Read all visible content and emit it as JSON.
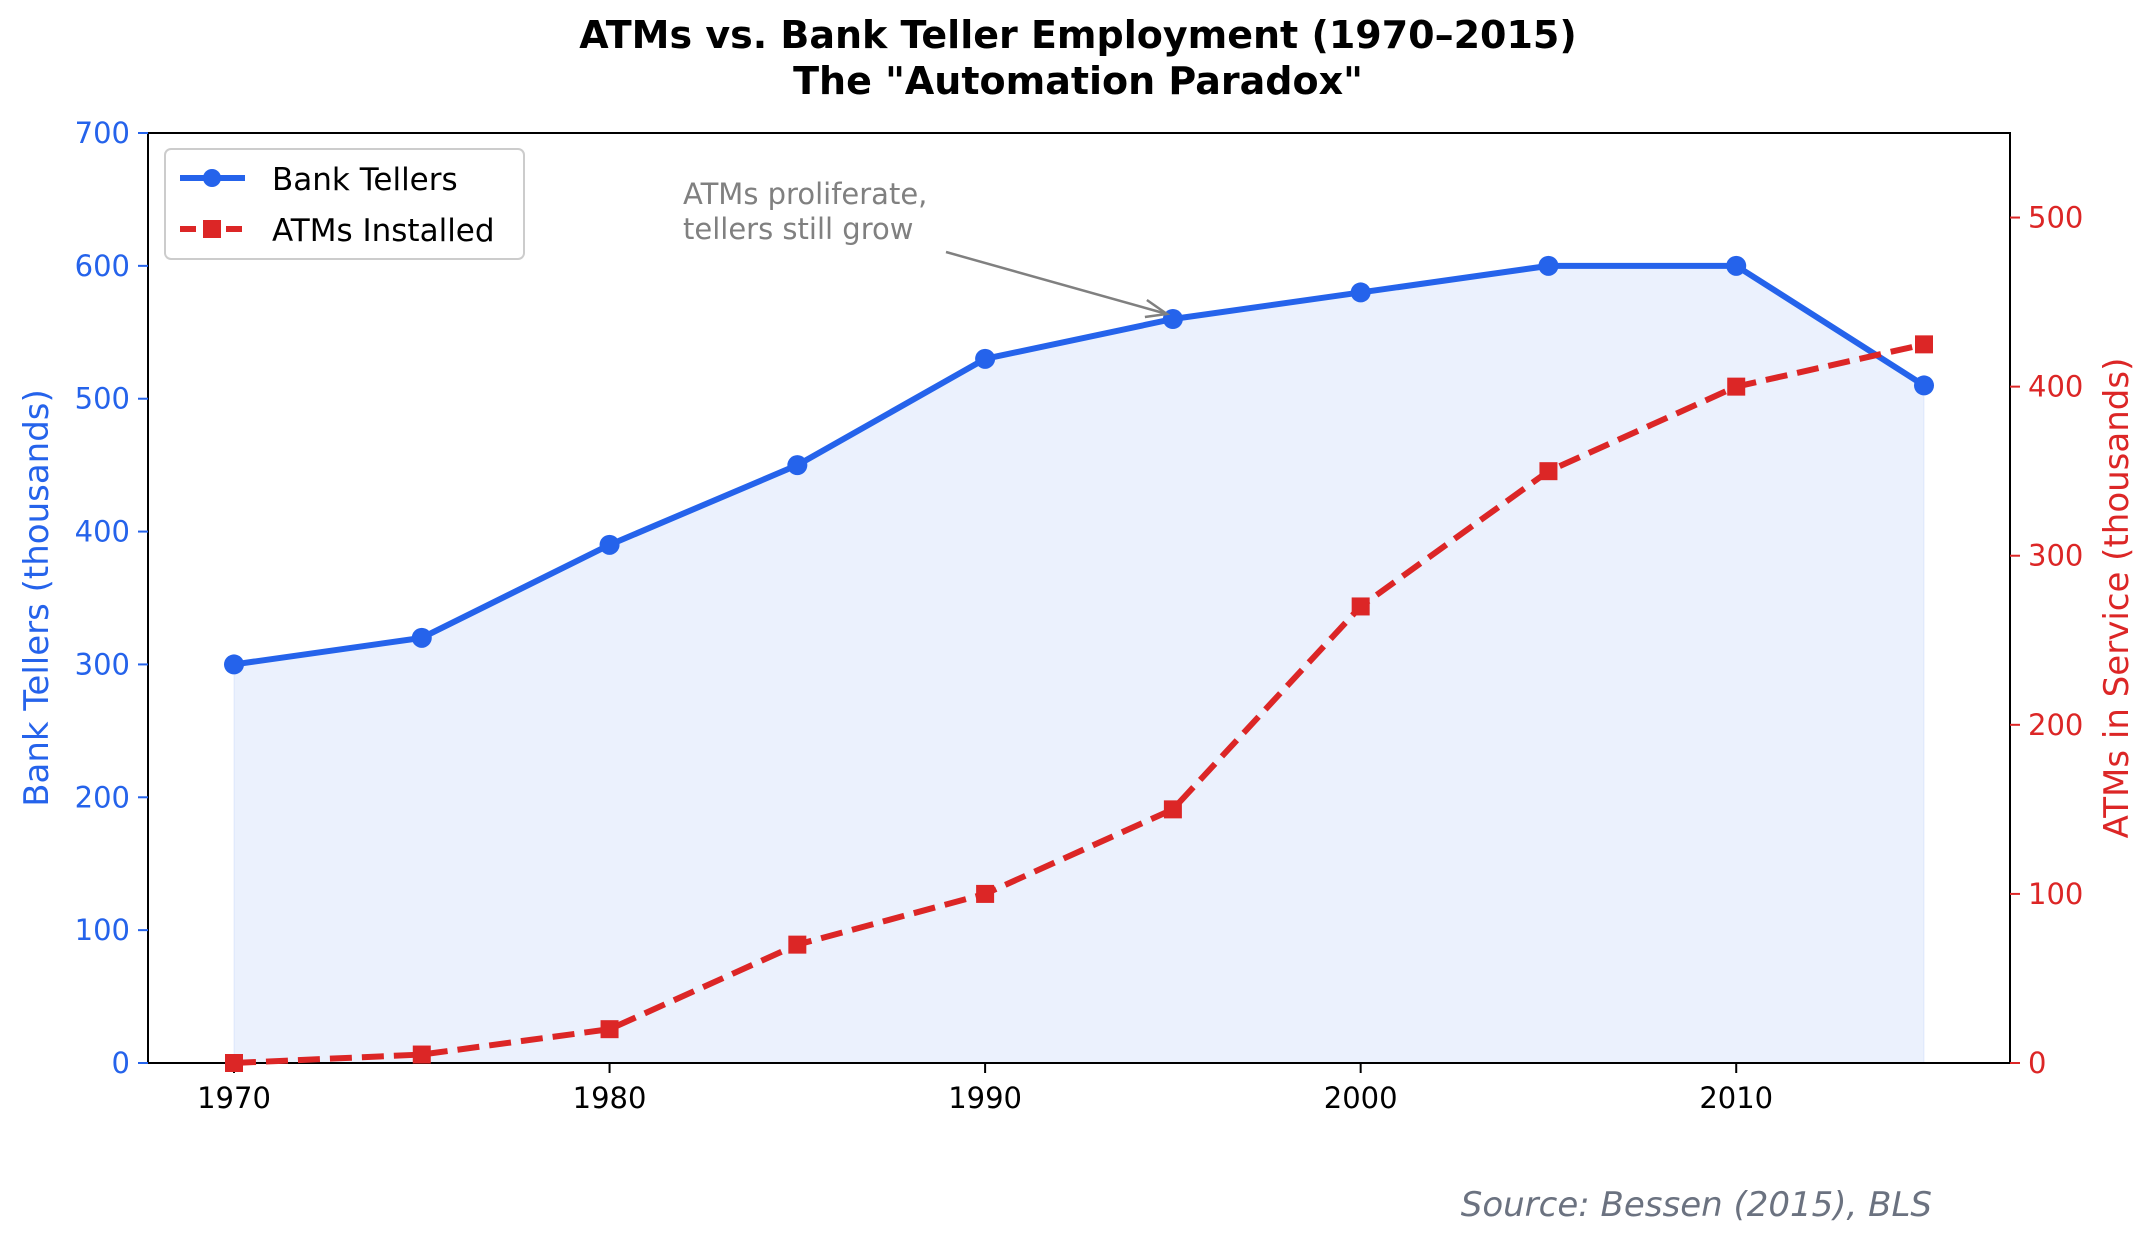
{
  "chart_data": {
    "type": "line",
    "title": "ATMs vs. Bank Teller Employment (1970–2015)",
    "subtitle": "The \"Automation Paradox\"",
    "x": [
      1970,
      1975,
      1980,
      1985,
      1990,
      1995,
      2000,
      2005,
      2010,
      2015
    ],
    "xlim": [
      1967.5,
      2017.3
    ],
    "xticks": [
      1970,
      1980,
      1990,
      2000,
      2010
    ],
    "ylabel_left": "Bank Tellers (thousands)",
    "ylabel_right": "ATMs in Service (thousands)",
    "ylim_left": [
      0,
      700
    ],
    "yticks_left": [
      0,
      100,
      200,
      300,
      400,
      500,
      600,
      700
    ],
    "ylim_right": [
      0,
      550
    ],
    "yticks_right": [
      0,
      100,
      200,
      300,
      400,
      500
    ],
    "series": [
      {
        "name": "Bank Tellers",
        "axis": "left",
        "color": "#2563eb",
        "style": "solid",
        "marker": "circle",
        "fill": true,
        "values": [
          300,
          320,
          390,
          450,
          530,
          560,
          580,
          600,
          600,
          510
        ]
      },
      {
        "name": "ATMs Installed",
        "axis": "right",
        "color": "#dc2626",
        "style": "dashed",
        "marker": "square",
        "values": [
          0,
          5,
          20,
          70,
          100,
          150,
          270,
          350,
          400,
          425
        ]
      }
    ],
    "legend": {
      "placement": "top-left",
      "entries": [
        "Bank Tellers",
        "ATMs Installed"
      ]
    },
    "annotation": {
      "lines": [
        "ATMs proliferate,",
        "tellers still grow"
      ],
      "target_x": 1995,
      "target_y": 560
    },
    "source": "Source: Bessen (2015), BLS",
    "grid": false
  }
}
